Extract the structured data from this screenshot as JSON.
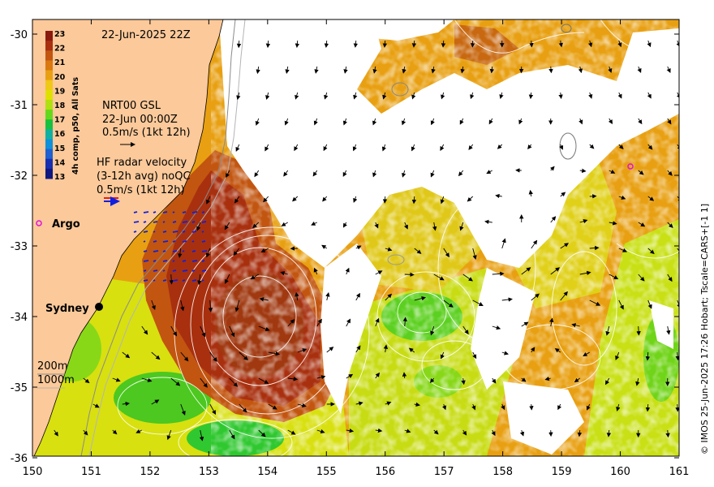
{
  "map": {
    "date_label": "22-Jun-2025 22Z",
    "colorbar": {
      "title": "4h comp, p50, All Sats",
      "ticks": [
        "23",
        "22",
        "21",
        "20",
        "19",
        "18",
        "17",
        "16",
        "15",
        "14",
        "13"
      ],
      "colors": [
        "#8b1a0e",
        "#a8300f",
        "#c25510",
        "#d9790f",
        "#e8a012",
        "#f0c818",
        "#e0e000",
        "#b0e010",
        "#66d81c",
        "#18c040",
        "#10b0a0",
        "#1090d8",
        "#2060d0",
        "#1830b0",
        "#101880"
      ]
    },
    "gsl_legend": {
      "line1": "NRT00 GSL",
      "line2": "22-Jun 00:00Z",
      "line3": "0.5m/s (1kt 12h)"
    },
    "hf_legend": {
      "line1": "HF radar velocity",
      "line2": "(3-12h avg) noQC",
      "line3": "0.5m/s (1kt 12h)"
    },
    "argo_label": "Argo",
    "city_label": "Sydney",
    "depth_legend": {
      "line1": "200m",
      "line2": "1000m"
    },
    "x_ticks": [
      "150",
      "151",
      "152",
      "153",
      "154",
      "155",
      "156",
      "157",
      "158",
      "159",
      "160",
      "161"
    ],
    "y_ticks": [
      "-30",
      "-31",
      "-32",
      "-33",
      "-34",
      "-35",
      "-36"
    ],
    "credit": "© IMOS 25-Jun-2025 17:26 Hobart; Tscale=CARS+[-1 1]",
    "colors": {
      "land": "#fbc99a",
      "cloud": "#ffffff",
      "warm": "#a8400e",
      "mid": "#e89a10",
      "cool": "#d8e010",
      "cold": "#30c830"
    }
  }
}
